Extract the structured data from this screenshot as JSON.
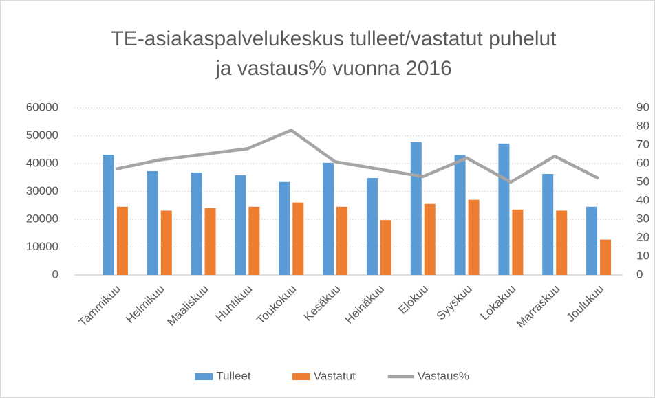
{
  "chart_data": {
    "type": "bar",
    "title": [
      "TE-asiakaspalvelukeskus tulleet/vastatut puhelut",
      "ja vastaus% vuonna 2016"
    ],
    "categories": [
      "Tammikuu",
      "Helmikuu",
      "Maaliskuu",
      "Huhtikuu",
      "Toukokuu",
      "Kesäkuu",
      "Heinäkuu",
      "Elokuu",
      "Syyskuu",
      "Lokakuu",
      "Marraskuu",
      "Joulukuu"
    ],
    "series": [
      {
        "name": "Tulleet",
        "color": "#5b9bd5",
        "type": "bar",
        "values": [
          43200,
          37300,
          36800,
          35800,
          33400,
          40300,
          34800,
          47700,
          43100,
          47200,
          36300,
          24500
        ]
      },
      {
        "name": "Vastatut",
        "color": "#ed7d31",
        "type": "bar",
        "values": [
          24500,
          23100,
          24000,
          24500,
          26000,
          24500,
          19700,
          25500,
          27000,
          23500,
          23100,
          12700
        ]
      },
      {
        "name": "Vastaus%",
        "color": "#a5a5a5",
        "type": "line",
        "axis": "y2",
        "values": [
          57,
          62,
          65,
          68,
          78,
          61,
          57,
          53,
          63,
          50,
          64,
          52
        ]
      }
    ],
    "ylim": [
      0,
      60000
    ],
    "yticks": [
      0,
      10000,
      20000,
      30000,
      40000,
      50000,
      60000
    ],
    "y2lim": [
      0,
      90
    ],
    "y2ticks": [
      0,
      10,
      20,
      30,
      40,
      50,
      60,
      70,
      80,
      90
    ],
    "grid": true,
    "legend": "bottom"
  }
}
